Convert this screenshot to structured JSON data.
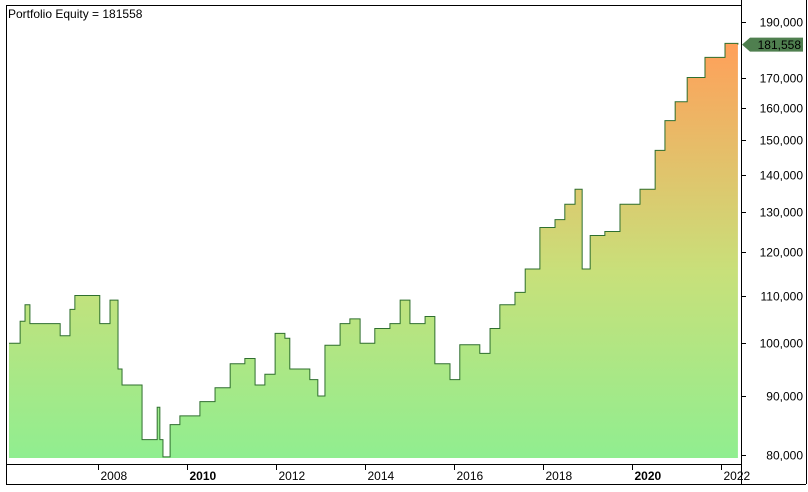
{
  "chart_data": {
    "type": "area",
    "title": "Portfolio Equity = 181558",
    "y_scale": "log",
    "ylim": [
      79500,
      198000
    ],
    "xlim": [
      2005.95,
      2022.45
    ],
    "y_ticks": [
      80000,
      90000,
      100000,
      110000,
      120000,
      130000,
      140000,
      150000,
      160000,
      170000,
      190000
    ],
    "y_tick_labels": [
      "80,000",
      "90,000",
      "100,000",
      "110,000",
      "120,000",
      "130,000",
      "140,000",
      "150,000",
      "160,000",
      "170,000",
      "190,000"
    ],
    "x_ticks": [
      2008,
      2010,
      2012,
      2014,
      2016,
      2018,
      2020,
      2022
    ],
    "x_tick_labels": [
      "2008",
      "2010",
      "2012",
      "2014",
      "2016",
      "2018",
      "2020",
      "2022"
    ],
    "x_bold_ticks": [
      2010,
      2020
    ],
    "last_value_label": "181,558",
    "grid": false,
    "colors": {
      "line": "#2f6f2f",
      "fill_low": "#90ee90",
      "fill_high": "#ffa05a",
      "badge": "#4f7f4f"
    },
    "series": [
      {
        "x": [
          2006.0,
          2006.25,
          2006.36,
          2006.47,
          2007.15,
          2007.37,
          2007.48,
          2008.04,
          2008.27,
          2008.45,
          2008.54,
          2008.94,
          2008.99,
          2009.28,
          2009.33,
          2009.39,
          2009.46,
          2009.62,
          2009.84,
          2010.29,
          2010.63,
          2010.97,
          2011.3,
          2011.53,
          2011.75,
          2011.98,
          2012.2,
          2012.31,
          2012.54,
          2012.76,
          2012.94,
          2013.1,
          2013.44,
          2013.66,
          2013.89,
          2014.22,
          2014.56,
          2014.79,
          2015.01,
          2015.35,
          2015.57,
          2015.91,
          2016.13,
          2016.58,
          2016.81,
          2017.03,
          2017.37,
          2017.6,
          2017.93,
          2018.27,
          2018.49,
          2018.72,
          2018.88,
          2019.06,
          2019.39,
          2019.73,
          2020.18,
          2020.52,
          2020.74,
          2020.97,
          2021.24,
          2021.64,
          2022.09,
          2022.38
        ],
        "y": [
          100000,
          104500,
          108000,
          104000,
          101500,
          107000,
          110000,
          104000,
          109000,
          95000,
          92000,
          92000,
          82500,
          82500,
          88000,
          82500,
          79700,
          85000,
          86500,
          89000,
          91500,
          96000,
          97000,
          92000,
          94000,
          102000,
          101000,
          95000,
          95000,
          93000,
          90000,
          99600,
          104000,
          105000,
          100000,
          103000,
          104000,
          109000,
          104000,
          105500,
          96000,
          93000,
          99700,
          98000,
          103000,
          108000,
          110700,
          116000,
          126000,
          128000,
          132000,
          136000,
          116000,
          124000,
          125000,
          132000,
          136000,
          147000,
          156000,
          162000,
          170000,
          177000,
          182000,
          181558
        ]
      }
    ]
  }
}
